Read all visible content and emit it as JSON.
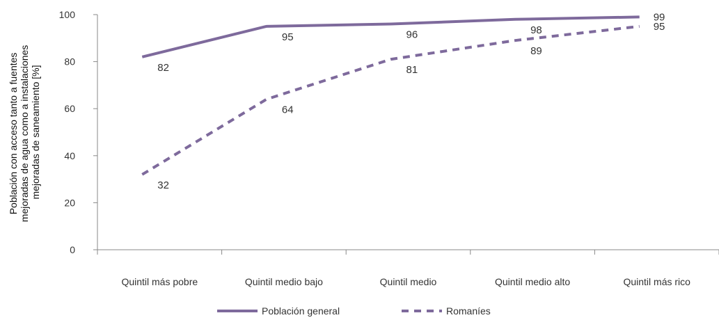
{
  "chart_data": {
    "type": "line",
    "title": "",
    "xlabel": "",
    "ylabel_lines": [
      "Población con acceso tanto a fuentes",
      "mejoradas de agua como a instalaciones",
      "mejoradas de saneamiento [%]"
    ],
    "categories": [
      "Quintil más pobre",
      "Quintil medio bajo",
      "Quintil medio",
      "Quintil medio alto",
      "Quintil más rico"
    ],
    "ylim": [
      0,
      100
    ],
    "yticks": [
      "0",
      "20",
      "40",
      "60",
      "80",
      "100"
    ],
    "grid": false,
    "legend_position": "bottom",
    "series": [
      {
        "name": "Población general",
        "values": [
          82,
          95,
          96,
          98,
          99
        ],
        "labels": [
          "82",
          "95",
          "96",
          "98",
          "99"
        ],
        "color": "#7e6a9c",
        "style": "solid"
      },
      {
        "name": "Romaníes",
        "values": [
          32,
          64,
          81,
          89,
          95
        ],
        "labels": [
          "32",
          "64",
          "81",
          "89",
          "95"
        ],
        "color": "#7e6a9c",
        "style": "dashed"
      }
    ]
  }
}
